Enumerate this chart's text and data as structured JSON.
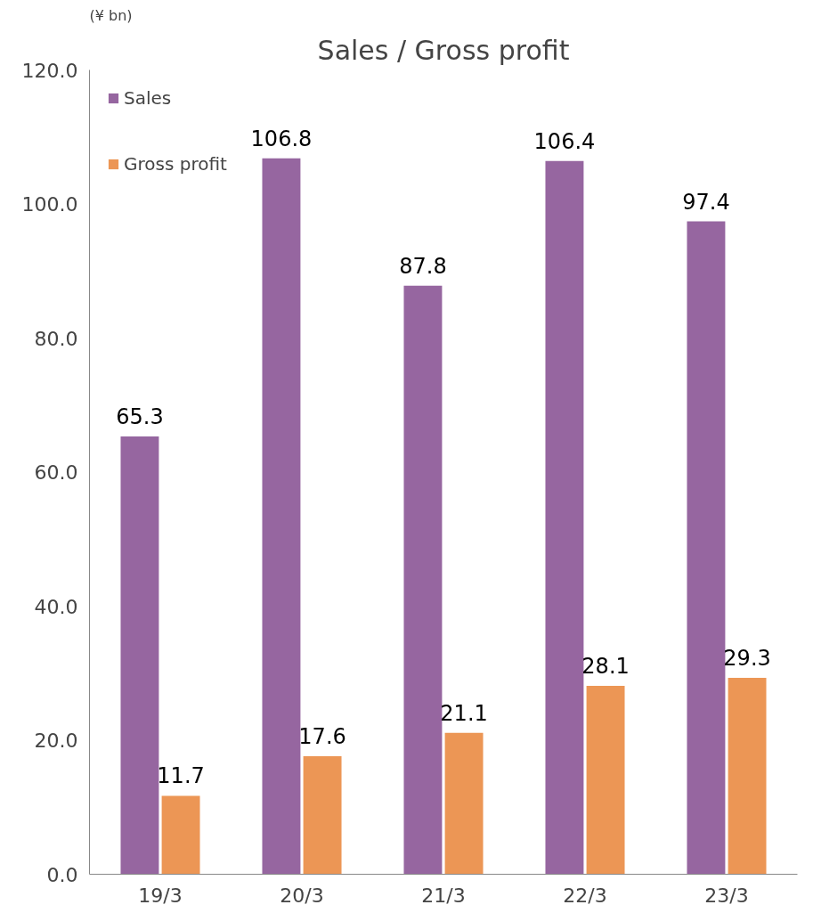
{
  "chart_data": {
    "type": "bar",
    "title": "Sales / Gross profit",
    "ylabel": "(¥ bn)",
    "categories": [
      "19/3",
      "20/3",
      "21/3",
      "22/3",
      "23/3"
    ],
    "series": [
      {
        "name": "Sales",
        "color": "#9666a0",
        "values": [
          65.3,
          106.8,
          87.8,
          106.4,
          97.4
        ]
      },
      {
        "name": "Gross profit",
        "color": "#ec9655",
        "values": [
          11.7,
          17.6,
          21.1,
          28.1,
          29.3
        ]
      }
    ],
    "ylim": [
      0,
      120
    ],
    "yticks": [
      {
        "value": 0,
        "label": "0.0"
      },
      {
        "value": 20,
        "label": "20.0"
      },
      {
        "value": 40,
        "label": "40.0"
      },
      {
        "value": 60,
        "label": "60.0"
      },
      {
        "value": 80,
        "label": "80.0"
      },
      {
        "value": 100,
        "label": "100.0"
      },
      {
        "value": 120,
        "label": "120.0"
      }
    ],
    "data_labels": true,
    "legend": "top left",
    "grid": false
  }
}
